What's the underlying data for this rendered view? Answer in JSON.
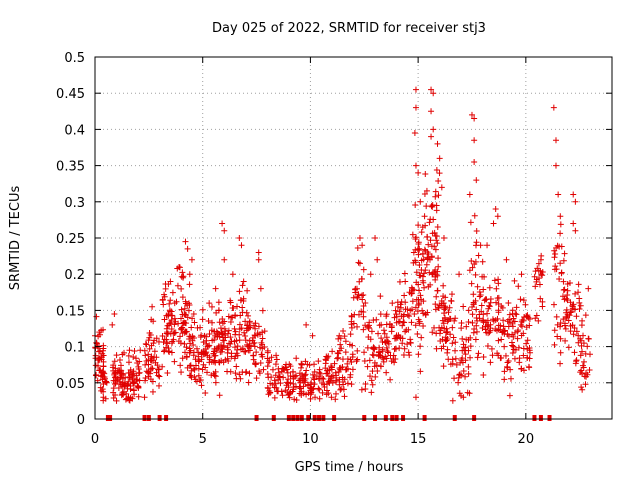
{
  "chart_data": {
    "type": "scatter",
    "title": "Day 025 of 2022, SRMTID for receiver stj3",
    "xlabel": "GPS time / hours",
    "ylabel": "SRMTID / TECUs",
    "xlim": [
      0,
      24
    ],
    "ylim": [
      0,
      0.5
    ],
    "grid": true,
    "marker": "plus",
    "color": "#e00000",
    "xticks": [
      0,
      5,
      10,
      15,
      20
    ],
    "xtick_labels": [
      "0",
      "5",
      "10",
      "15",
      "20"
    ],
    "yticks": [
      0,
      0.05,
      0.1,
      0.15,
      0.2,
      0.25,
      0.3,
      0.35,
      0.4,
      0.45,
      0.5
    ],
    "ytick_labels": [
      "0",
      "0.05",
      "0.1",
      "0.15",
      "0.2",
      "0.25",
      "0.3",
      "0.35",
      "0.4",
      "0.45",
      "0.5"
    ],
    "zero_markers_x": [
      0.6,
      0.7,
      2.3,
      2.5,
      3.0,
      3.3,
      7.5,
      8.3,
      9.0,
      9.2,
      9.4,
      9.6,
      9.9,
      10.2,
      10.4,
      10.6,
      11.1,
      12.5,
      13.0,
      13.5,
      13.8,
      14.0,
      14.3,
      15.3,
      16.7,
      17.6,
      20.4,
      20.7,
      21.1
    ],
    "clusters": [
      {
        "x0": 0.0,
        "x1": 0.4,
        "center": 0.08,
        "spread": 0.03,
        "n": 45
      },
      {
        "x0": 0.3,
        "x1": 0.6,
        "center": 0.06,
        "spread": 0.02,
        "n": 15
      },
      {
        "x0": 0.8,
        "x1": 1.3,
        "center": 0.055,
        "spread": 0.02,
        "n": 40
      },
      {
        "x0": 1.2,
        "x1": 2.1,
        "center": 0.06,
        "spread": 0.02,
        "n": 70
      },
      {
        "x0": 2.3,
        "x1": 3.0,
        "center": 0.08,
        "spread": 0.03,
        "n": 50
      },
      {
        "x0": 3.1,
        "x1": 3.7,
        "center": 0.13,
        "spread": 0.035,
        "n": 55
      },
      {
        "x0": 3.7,
        "x1": 4.4,
        "center": 0.13,
        "spread": 0.05,
        "n": 60
      },
      {
        "x0": 4.4,
        "x1": 5.1,
        "center": 0.09,
        "spread": 0.03,
        "n": 55
      },
      {
        "x0": 5.1,
        "x1": 6.0,
        "center": 0.1,
        "spread": 0.035,
        "n": 80
      },
      {
        "x0": 6.0,
        "x1": 7.2,
        "center": 0.12,
        "spread": 0.04,
        "n": 95
      },
      {
        "x0": 7.2,
        "x1": 7.9,
        "center": 0.1,
        "spread": 0.035,
        "n": 40
      },
      {
        "x0": 8.0,
        "x1": 8.7,
        "center": 0.06,
        "spread": 0.02,
        "n": 40
      },
      {
        "x0": 8.7,
        "x1": 9.7,
        "center": 0.05,
        "spread": 0.02,
        "n": 60
      },
      {
        "x0": 9.7,
        "x1": 10.6,
        "center": 0.05,
        "spread": 0.02,
        "n": 45
      },
      {
        "x0": 10.6,
        "x1": 11.2,
        "center": 0.06,
        "spread": 0.025,
        "n": 40
      },
      {
        "x0": 11.2,
        "x1": 12.0,
        "center": 0.08,
        "spread": 0.03,
        "n": 45
      },
      {
        "x0": 11.9,
        "x1": 12.5,
        "center": 0.14,
        "spread": 0.05,
        "n": 40
      },
      {
        "x0": 12.5,
        "x1": 13.4,
        "center": 0.1,
        "spread": 0.04,
        "n": 55
      },
      {
        "x0": 13.4,
        "x1": 14.0,
        "center": 0.11,
        "spread": 0.03,
        "n": 40
      },
      {
        "x0": 14.0,
        "x1": 14.7,
        "center": 0.13,
        "spread": 0.035,
        "n": 45
      },
      {
        "x0": 14.7,
        "x1": 15.3,
        "center": 0.2,
        "spread": 0.06,
        "n": 65
      },
      {
        "x0": 15.3,
        "x1": 16.0,
        "center": 0.23,
        "spread": 0.07,
        "n": 75
      },
      {
        "x0": 16.0,
        "x1": 16.6,
        "center": 0.13,
        "spread": 0.045,
        "n": 50
      },
      {
        "x0": 16.6,
        "x1": 17.4,
        "center": 0.09,
        "spread": 0.035,
        "n": 45
      },
      {
        "x0": 17.4,
        "x1": 18.0,
        "center": 0.17,
        "spread": 0.05,
        "n": 45
      },
      {
        "x0": 18.0,
        "x1": 18.8,
        "center": 0.13,
        "spread": 0.04,
        "n": 55
      },
      {
        "x0": 18.8,
        "x1": 19.5,
        "center": 0.11,
        "spread": 0.035,
        "n": 50
      },
      {
        "x0": 19.5,
        "x1": 20.2,
        "center": 0.12,
        "spread": 0.035,
        "n": 45
      },
      {
        "x0": 20.4,
        "x1": 20.8,
        "center": 0.19,
        "spread": 0.03,
        "n": 20
      },
      {
        "x0": 21.3,
        "x1": 21.8,
        "center": 0.18,
        "spread": 0.06,
        "n": 35
      },
      {
        "x0": 21.8,
        "x1": 22.5,
        "center": 0.14,
        "spread": 0.04,
        "n": 45
      },
      {
        "x0": 22.5,
        "x1": 23.0,
        "center": 0.09,
        "spread": 0.03,
        "n": 30
      }
    ],
    "peaks": [
      {
        "x": 0.0,
        "y": 0.115
      },
      {
        "x": 0.2,
        "y": 0.12
      },
      {
        "x": 0.9,
        "y": 0.145
      },
      {
        "x": 0.8,
        "y": 0.13
      },
      {
        "x": 1.6,
        "y": 0.095
      },
      {
        "x": 2.1,
        "y": 0.095
      },
      {
        "x": 2.65,
        "y": 0.155
      },
      {
        "x": 2.7,
        "y": 0.135
      },
      {
        "x": 3.5,
        "y": 0.19
      },
      {
        "x": 3.9,
        "y": 0.21
      },
      {
        "x": 4.2,
        "y": 0.245
      },
      {
        "x": 4.3,
        "y": 0.235
      },
      {
        "x": 4.5,
        "y": 0.22
      },
      {
        "x": 4.4,
        "y": 0.2
      },
      {
        "x": 5.3,
        "y": 0.16
      },
      {
        "x": 5.6,
        "y": 0.18
      },
      {
        "x": 5.9,
        "y": 0.27
      },
      {
        "x": 6.0,
        "y": 0.26
      },
      {
        "x": 6.0,
        "y": 0.22
      },
      {
        "x": 6.4,
        "y": 0.2
      },
      {
        "x": 6.7,
        "y": 0.25
      },
      {
        "x": 6.8,
        "y": 0.24
      },
      {
        "x": 6.9,
        "y": 0.19
      },
      {
        "x": 7.6,
        "y": 0.23
      },
      {
        "x": 7.6,
        "y": 0.22
      },
      {
        "x": 7.7,
        "y": 0.18
      },
      {
        "x": 9.8,
        "y": 0.13
      },
      {
        "x": 10.1,
        "y": 0.115
      },
      {
        "x": 12.3,
        "y": 0.25
      },
      {
        "x": 12.4,
        "y": 0.24
      },
      {
        "x": 12.3,
        "y": 0.215
      },
      {
        "x": 13.0,
        "y": 0.25
      },
      {
        "x": 12.8,
        "y": 0.2
      },
      {
        "x": 13.1,
        "y": 0.22
      },
      {
        "x": 14.9,
        "y": 0.455
      },
      {
        "x": 14.9,
        "y": 0.43
      },
      {
        "x": 14.85,
        "y": 0.395
      },
      {
        "x": 14.9,
        "y": 0.35
      },
      {
        "x": 15.0,
        "y": 0.34
      },
      {
        "x": 15.6,
        "y": 0.455
      },
      {
        "x": 15.7,
        "y": 0.45
      },
      {
        "x": 15.6,
        "y": 0.425
      },
      {
        "x": 15.7,
        "y": 0.4
      },
      {
        "x": 15.6,
        "y": 0.39
      },
      {
        "x": 15.9,
        "y": 0.38
      },
      {
        "x": 16.0,
        "y": 0.36
      },
      {
        "x": 17.5,
        "y": 0.42
      },
      {
        "x": 17.6,
        "y": 0.415
      },
      {
        "x": 17.6,
        "y": 0.385
      },
      {
        "x": 17.6,
        "y": 0.355
      },
      {
        "x": 17.7,
        "y": 0.33
      },
      {
        "x": 17.4,
        "y": 0.31
      },
      {
        "x": 18.6,
        "y": 0.29
      },
      {
        "x": 18.7,
        "y": 0.28
      },
      {
        "x": 18.5,
        "y": 0.27
      },
      {
        "x": 18.2,
        "y": 0.24
      },
      {
        "x": 21.3,
        "y": 0.43
      },
      {
        "x": 21.4,
        "y": 0.385
      },
      {
        "x": 21.4,
        "y": 0.35
      },
      {
        "x": 21.5,
        "y": 0.31
      },
      {
        "x": 21.6,
        "y": 0.28
      },
      {
        "x": 22.2,
        "y": 0.31
      },
      {
        "x": 22.3,
        "y": 0.3
      },
      {
        "x": 22.2,
        "y": 0.27
      },
      {
        "x": 22.3,
        "y": 0.26
      },
      {
        "x": 22.9,
        "y": 0.18
      },
      {
        "x": 20.7,
        "y": 0.22
      },
      {
        "x": 20.6,
        "y": 0.205
      },
      {
        "x": 16.1,
        "y": 0.32
      },
      {
        "x": 16.2,
        "y": 0.25
      },
      {
        "x": 15.1,
        "y": 0.3
      },
      {
        "x": 15.3,
        "y": 0.28
      },
      {
        "x": 13.8,
        "y": 0.16
      },
      {
        "x": 14.4,
        "y": 0.19
      },
      {
        "x": 14.6,
        "y": 0.175
      },
      {
        "x": 19.1,
        "y": 0.22
      },
      {
        "x": 19.8,
        "y": 0.2
      },
      {
        "x": 17.9,
        "y": 0.24
      },
      {
        "x": 16.9,
        "y": 0.2
      },
      {
        "x": 14.9,
        "y": 0.03
      },
      {
        "x": 17.1,
        "y": 0.03
      },
      {
        "x": 0.5,
        "y": 0.028
      },
      {
        "x": 1.0,
        "y": 0.025
      },
      {
        "x": 2.3,
        "y": 0.03
      }
    ]
  }
}
